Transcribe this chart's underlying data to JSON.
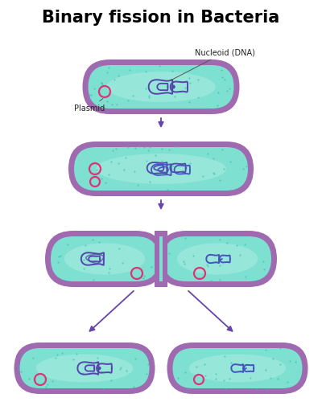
{
  "title": "Binary fission in Bacteria",
  "title_fontsize": 15,
  "title_fontweight": "bold",
  "bg_color": "#ffffff",
  "cell_outer_color": "#a06ab0",
  "cell_fill_color": "#7de0d0",
  "cell_inner_color": "#b0eee4",
  "dna_color": "#5544aa",
  "dna_color2": "#4455bb",
  "plasmid_color": "#dd3377",
  "dot_color": "#33bbaa",
  "arrow_color": "#6644aa",
  "label_nucleoid": "Nucleoid (DNA)",
  "label_plasmid": "Plasmid"
}
